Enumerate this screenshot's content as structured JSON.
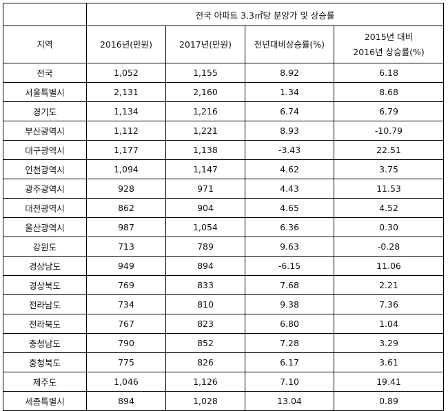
{
  "table": {
    "super_header": "전국 아파트 3.3㎡당 분양가 및 상승률",
    "columns": {
      "region": "지역",
      "price_2016": "2016년(만원)",
      "price_2017": "2017년(만원)",
      "yoy_rate": "전년대비상승률(%)",
      "rate_2016_line1": "2015년 대비",
      "rate_2016_line2": "2016년 상승률(%)"
    },
    "rows": [
      {
        "region": "전국",
        "p2016": "1,052",
        "p2017": "1,155",
        "yoy": "8.92",
        "r2016": "6.18"
      },
      {
        "region": "서울특별시",
        "p2016": "2,131",
        "p2017": "2,160",
        "yoy": "1.34",
        "r2016": "8.68"
      },
      {
        "region": "경기도",
        "p2016": "1,134",
        "p2017": "1,216",
        "yoy": "6.74",
        "r2016": "6.79"
      },
      {
        "region": "부산광역시",
        "p2016": "1,112",
        "p2017": "1,221",
        "yoy": "8.93",
        "r2016": "-10.79"
      },
      {
        "region": "대구광역시",
        "p2016": "1,177",
        "p2017": "1,138",
        "yoy": "-3.43",
        "r2016": "22.51"
      },
      {
        "region": "인천광역시",
        "p2016": "1,094",
        "p2017": "1,147",
        "yoy": "4.62",
        "r2016": "3.75"
      },
      {
        "region": "광주광역시",
        "p2016": "928",
        "p2017": "971",
        "yoy": "4.43",
        "r2016": "11.53"
      },
      {
        "region": "대전광역시",
        "p2016": "862",
        "p2017": "904",
        "yoy": "4.65",
        "r2016": "4.52"
      },
      {
        "region": "울산광역시",
        "p2016": "987",
        "p2017": "1,054",
        "yoy": "6.36",
        "r2016": "0.30"
      },
      {
        "region": "강원도",
        "p2016": "713",
        "p2017": "789",
        "yoy": "9.63",
        "r2016": "-0.28"
      },
      {
        "region": "경상남도",
        "p2016": "949",
        "p2017": "894",
        "yoy": "-6.15",
        "r2016": "11.06"
      },
      {
        "region": "경상북도",
        "p2016": "769",
        "p2017": "833",
        "yoy": "7.68",
        "r2016": "2.21"
      },
      {
        "region": "전라남도",
        "p2016": "734",
        "p2017": "810",
        "yoy": "9.38",
        "r2016": "7.36"
      },
      {
        "region": "전라북도",
        "p2016": "767",
        "p2017": "823",
        "yoy": "6.80",
        "r2016": "1.04"
      },
      {
        "region": "충청남도",
        "p2016": "790",
        "p2017": "852",
        "yoy": "7.28",
        "r2016": "3.29"
      },
      {
        "region": "충청북도",
        "p2016": "775",
        "p2017": "826",
        "yoy": "6.17",
        "r2016": "3.61"
      },
      {
        "region": "제주도",
        "p2016": "1,046",
        "p2017": "1,126",
        "yoy": "7.10",
        "r2016": "19.41"
      },
      {
        "region": "세종특별시",
        "p2016": "894",
        "p2017": "1,028",
        "yoy": "13.04",
        "r2016": "0.89"
      }
    ]
  }
}
